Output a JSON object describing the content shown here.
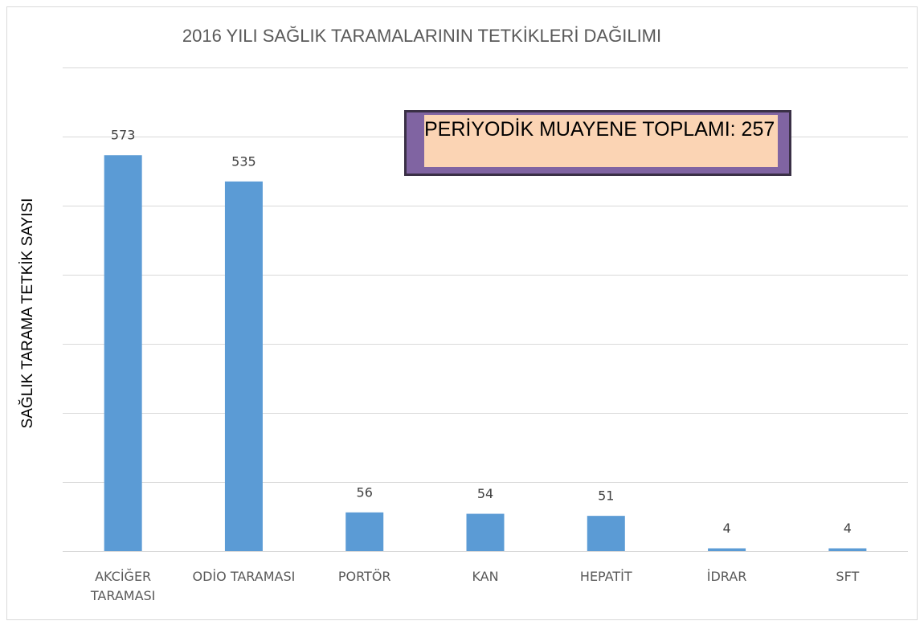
{
  "chart_data": {
    "type": "bar",
    "title": "2016 YILI SAĞLIK TARAMALARININ TETKİKLERİ DAĞILIMI",
    "y_label": "SAĞLIK TARAMA TETKİK SAYISI",
    "annotation": "PERİYODİK MUAYENE TOPLAMI: 257",
    "categories": [
      "AKCİĞER TARAMASI",
      "ODİO TARAMASI",
      "PORTÖR",
      "KAN",
      "HEPATİT",
      "İDRAR",
      "SFT"
    ],
    "values": [
      573,
      535,
      56,
      54,
      51,
      4,
      4
    ],
    "color": "#5b9bd5",
    "ylim": [
      0,
      700
    ],
    "yticks": [
      0,
      100,
      200,
      300,
      400,
      500,
      600,
      700
    ],
    "grid": true
  }
}
